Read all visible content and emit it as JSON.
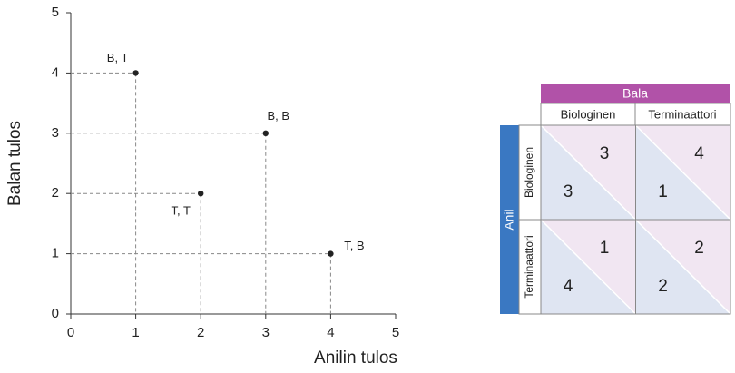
{
  "chart_data": {
    "type": "scatter",
    "xlabel": "Anilin tulos",
    "ylabel": "Balan tulos",
    "x": [
      1,
      3,
      2,
      4
    ],
    "values": [
      4,
      3,
      2,
      1
    ],
    "point_labels": [
      "B, T",
      "B, B",
      "T, T",
      "T, B"
    ],
    "color": "#222222",
    "xlim": [
      0,
      5
    ],
    "ylim": [
      0,
      5
    ],
    "xticks": [
      0,
      1,
      2,
      3,
      4,
      5
    ],
    "yticks": [
      0,
      1,
      2,
      3,
      4,
      5
    ]
  },
  "table": {
    "column_player": "Bala",
    "row_player": "Anil",
    "columns": [
      "Biologinen",
      "Terminaattori"
    ],
    "rows": [
      "Biologinen",
      "Terminaattori"
    ],
    "cells": [
      [
        {
          "anil": "3",
          "bala": "3"
        },
        {
          "anil": "1",
          "bala": "4"
        }
      ],
      [
        {
          "anil": "4",
          "bala": "1"
        },
        {
          "anil": "2",
          "bala": "2"
        }
      ]
    ]
  }
}
